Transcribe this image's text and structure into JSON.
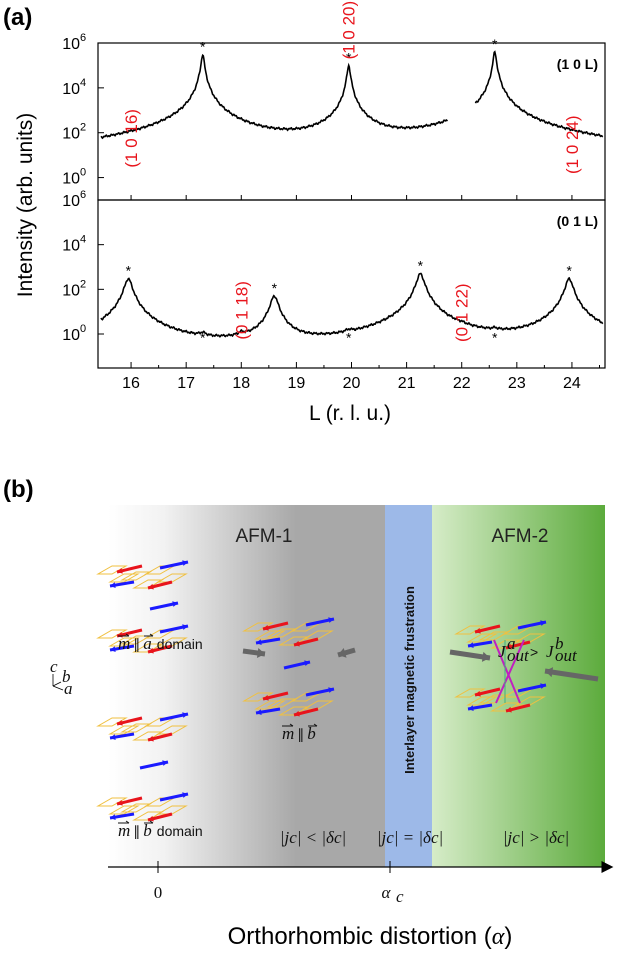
{
  "panel_a": {
    "label": "(a)",
    "ylabel": "Intensity (arb. units)",
    "xlabel": "L (r. l. u.)",
    "xticks": [
      "16",
      "17",
      "18",
      "19",
      "20",
      "21",
      "22",
      "23",
      "24"
    ],
    "top_yticks": [
      "10",
      "10",
      "10",
      "10"
    ],
    "top_yexp": [
      "6",
      "4",
      "2",
      "0"
    ],
    "bottom_yticks": [
      "10",
      "10",
      "10",
      "10"
    ],
    "bottom_yexp": [
      "6",
      "4",
      "2",
      "0"
    ],
    "series_top": "(1 0 L)",
    "series_bottom": "(0 1 L)",
    "top_peak_labels": [
      "(1 0 16)",
      "(1 0 20)",
      "(1 0 24)"
    ],
    "bottom_peak_labels": [
      "(0 1 18)",
      "(0 1 22)"
    ],
    "star": "*"
  },
  "panel_b": {
    "label": "(b)",
    "afm1": "AFM-1",
    "afm2": "AFM-2",
    "frustration": "Interlayer magnetic frustration",
    "domain_a_m": "m",
    "domain_a_par": "∥",
    "domain_a_vec": "a",
    "domain_a_word": "domain",
    "domain_b_m": "m",
    "domain_b_par": "∥",
    "domain_b_vec": "b",
    "domain_b_word": "domain",
    "mid_m": "m",
    "mid_par": "∥",
    "mid_vec": "b",
    "cond1": "|jc| < |δc|",
    "cond2": "|jc| = |δc|",
    "cond3": "|jc| > |δc|",
    "j_a": "J",
    "j_a_sup": "a",
    "j_a_sub": "out",
    "j_gt": ">",
    "j_b": "J",
    "j_b_sup": "b",
    "j_b_sub": "out",
    "axis_c": "c",
    "axis_b": "b",
    "axis_a": "a",
    "xtick0": "0",
    "xtick_ac": "α",
    "xtick_ac_sub": "c",
    "xlabel": "Orthorhombic distortion (",
    "xlabel_sym": "α",
    "xlabel_end": ")"
  },
  "colors": {
    "red": "#e8141c",
    "blue": "#1a1aff",
    "green": "#3d9a2a",
    "frustration": "#9db9e8"
  },
  "chart_data": {
    "type": "line",
    "xlabel": "L (r. l. u.)",
    "ylabel": "Intensity (arb. units)",
    "xlim": [
      15.4,
      24.6
    ],
    "yscale": "log",
    "series": [
      {
        "name": "(1 0 L)",
        "ylim": [
          0.1,
          1000000
        ],
        "peaks": [
          {
            "L": 16.0,
            "I": 1.5,
            "label": "(1 0 16)"
          },
          {
            "L": 17.3,
            "I": 300000,
            "star": true
          },
          {
            "L": 19.95,
            "I": 100000,
            "label": "(1 0 20)",
            "star": true
          },
          {
            "L": 22.6,
            "I": 400000,
            "star": true
          },
          {
            "L": 24.0,
            "I": 0.6,
            "label": "(1 0 24)"
          }
        ]
      },
      {
        "name": "(0 1 L)",
        "ylim": [
          0.03,
          1000000
        ],
        "peaks": [
          {
            "L": 15.95,
            "I": 300,
            "star": true
          },
          {
            "L": 17.3,
            "I": 0.3,
            "star": true
          },
          {
            "L": 18.0,
            "I": 0.3,
            "label": "(0 1 18)"
          },
          {
            "L": 18.6,
            "I": 50,
            "star": true
          },
          {
            "L": 19.95,
            "I": 0.3,
            "star": true
          },
          {
            "L": 21.25,
            "I": 500,
            "star": true
          },
          {
            "L": 22.0,
            "I": 0.2,
            "label": "(0 1 22)"
          },
          {
            "L": 22.6,
            "I": 0.3,
            "star": true
          },
          {
            "L": 23.95,
            "I": 300,
            "star": true
          }
        ]
      }
    ]
  }
}
